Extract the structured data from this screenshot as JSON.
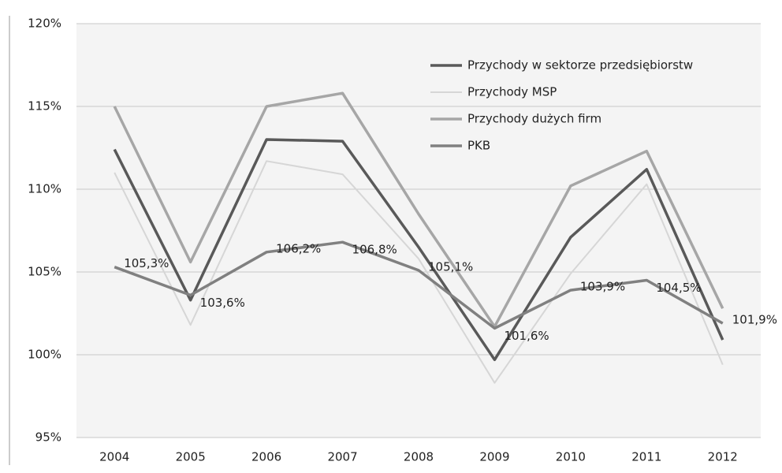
{
  "chart_data": {
    "type": "line",
    "categories": [
      "2004",
      "2005",
      "2006",
      "2007",
      "2008",
      "2009",
      "2010",
      "2011",
      "2012"
    ],
    "series": [
      {
        "name": "Przychody w sektorze przedsiębiorstw",
        "color": "#595959",
        "values": [
          112.4,
          103.3,
          113.0,
          112.9,
          106.5,
          99.7,
          107.1,
          111.2,
          100.9
        ]
      },
      {
        "name": "Przychody MSP",
        "color": "#d6d6d6",
        "values": [
          111.0,
          101.8,
          111.7,
          110.9,
          105.8,
          98.3,
          104.9,
          110.3,
          99.4
        ]
      },
      {
        "name": "Przychody dużych firm",
        "color": "#a6a6a6",
        "values": [
          115.0,
          105.6,
          115.0,
          115.8,
          108.5,
          101.7,
          110.2,
          112.3,
          102.8
        ]
      },
      {
        "name": "PKB",
        "color": "#808080",
        "values": [
          105.3,
          103.6,
          106.2,
          106.8,
          105.1,
          101.6,
          103.9,
          104.5,
          101.9
        ],
        "value_labels": [
          "105,3%",
          "103,6%",
          "106,2%",
          "106,8%",
          "105,1%",
          "101,6%",
          "103,9%",
          "104,5%",
          "101,9%"
        ]
      }
    ],
    "ylim": [
      95,
      120
    ],
    "yticks": [
      {
        "value": 95,
        "label": "95%"
      },
      {
        "value": 100,
        "label": "100%"
      },
      {
        "value": 105,
        "label": "105%"
      },
      {
        "value": 110,
        "label": "110%"
      },
      {
        "value": 115,
        "label": "115%"
      },
      {
        "value": 120,
        "label": "120%"
      }
    ],
    "grid": true,
    "legend": "upper right"
  }
}
